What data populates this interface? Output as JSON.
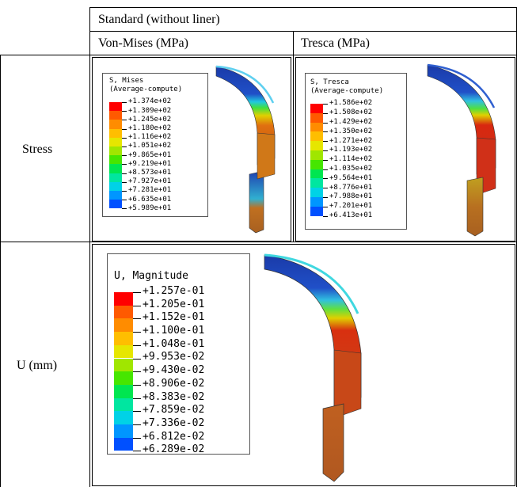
{
  "table": {
    "header_group": "Standard (without liner)",
    "col_vonmises": "Von-Mises (MPa)",
    "col_tresca": "Tresca (MPa)",
    "row_stress": "Stress",
    "row_displacement": "U (mm)"
  },
  "legends": {
    "mises": {
      "title1": "S, Mises",
      "title2": "(Average-compute)",
      "values": [
        "+1.374e+02",
        "+1.309e+02",
        "+1.245e+02",
        "+1.180e+02",
        "+1.116e+02",
        "+1.051e+02",
        "+9.865e+01",
        "+9.219e+01",
        "+8.573e+01",
        "+7.927e+01",
        "+7.281e+01",
        "+6.635e+01",
        "+5.989e+01"
      ]
    },
    "tresca": {
      "title1": "S, Tresca",
      "title2": "(Average-compute)",
      "values": [
        "+1.586e+02",
        "+1.508e+02",
        "+1.429e+02",
        "+1.350e+02",
        "+1.271e+02",
        "+1.193e+02",
        "+1.114e+02",
        "+1.035e+02",
        "+9.564e+01",
        "+8.776e+01",
        "+7.988e+01",
        "+7.201e+01",
        "+6.413e+01"
      ]
    },
    "umag": {
      "title1": "U, Magnitude",
      "values": [
        "+1.257e-01",
        "+1.205e-01",
        "+1.152e-01",
        "+1.100e-01",
        "+1.048e-01",
        "+9.953e-02",
        "+9.430e-02",
        "+8.906e-02",
        "+8.383e-02",
        "+7.859e-02",
        "+7.336e-02",
        "+6.812e-02",
        "+6.289e-02"
      ]
    }
  },
  "colormap": [
    "#ff0000",
    "#ff5a00",
    "#ff8c00",
    "#ffbe00",
    "#e6e600",
    "#a0e600",
    "#46e600",
    "#00e650",
    "#00e6a0",
    "#00d2e6",
    "#0096ff",
    "#0050ff",
    "#0000ff"
  ]
}
